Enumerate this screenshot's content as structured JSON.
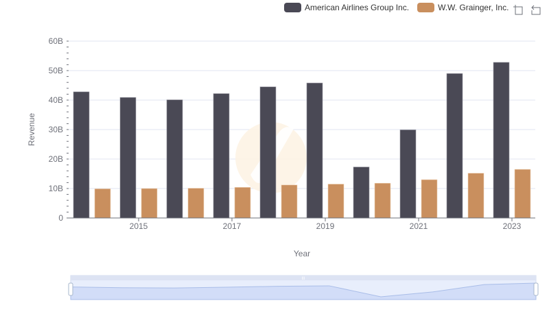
{
  "legend": [
    {
      "label": "American Airlines Group Inc.",
      "color": "#4a4955"
    },
    {
      "label": "W.W. Grainger, Inc.",
      "color": "#c98f5e"
    }
  ],
  "toolbox": {
    "zoom_icon": "data-zoom-icon",
    "restore_icon": "zoom-reset-icon"
  },
  "chart_data": {
    "type": "bar",
    "title": "",
    "xlabel": "Year",
    "ylabel": "Revenue",
    "categories": [
      "2014",
      "2015",
      "2016",
      "2017",
      "2018",
      "2019",
      "2020",
      "2021",
      "2022",
      "2023"
    ],
    "x_tick_labels": [
      "2015",
      "2017",
      "2019",
      "2021",
      "2023"
    ],
    "y_tick_labels": [
      "0",
      "10B",
      "20B",
      "30B",
      "40B",
      "50B",
      "60B"
    ],
    "ylim": [
      0,
      60
    ],
    "y_unit": "B",
    "grid": true,
    "legend_position": "top-right",
    "series": [
      {
        "name": "American Airlines Group Inc.",
        "color": "#4a4955",
        "values": [
          42.8,
          40.9,
          40.1,
          42.2,
          44.5,
          45.8,
          17.3,
          29.9,
          49.0,
          52.8
        ]
      },
      {
        "name": "W.W. Grainger, Inc.",
        "color": "#c98f5e",
        "values": [
          9.9,
          10.0,
          10.1,
          10.4,
          11.2,
          11.5,
          11.8,
          13.0,
          15.2,
          16.5
        ]
      }
    ],
    "datazoom": {
      "start_percent": 0,
      "end_percent": 100,
      "handle_label": "III"
    }
  }
}
